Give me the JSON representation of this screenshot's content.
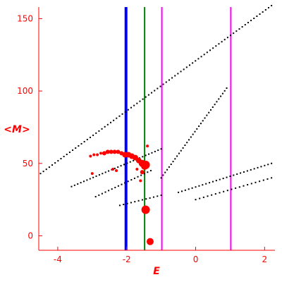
{
  "chart_data": {
    "type": "scatter",
    "title": "",
    "xlabel": "E",
    "ylabel": "<M>",
    "xlim": [
      -4.55,
      2.3
    ],
    "ylim": [
      -10,
      158
    ],
    "xticks": [
      -4,
      -2,
      0,
      2
    ],
    "yticks": [
      0,
      50,
      100,
      150
    ],
    "grid": false,
    "colors": {
      "axes": "#ff0000",
      "black_points": "#000000",
      "red_points": "#ff0000",
      "blue_line": "#0000ff",
      "green_line": "#008000",
      "magenta_lines": "#ff00ff"
    },
    "vertical_lines": [
      {
        "x": -2.02,
        "color": "#0000ff",
        "width": "thick"
      },
      {
        "x": -1.48,
        "color": "#008000",
        "width": "thin"
      },
      {
        "x": -0.98,
        "color": "#ff00ff",
        "width": "thin"
      },
      {
        "x": 1.02,
        "color": "#ff00ff",
        "width": "thin"
      }
    ],
    "black_series": [
      {
        "x_start": -4.5,
        "x_end": 2.2,
        "y_start": 43,
        "y_end": 159,
        "count": 80
      },
      {
        "x_start": -3.6,
        "x_end": -1.0,
        "y_start": 34,
        "y_end": 60,
        "count": 30
      },
      {
        "x_start": -2.9,
        "x_end": -1.3,
        "y_start": 27,
        "y_end": 45,
        "count": 18
      },
      {
        "x_start": -2.2,
        "x_end": -1.0,
        "y_start": 21,
        "y_end": 28,
        "count": 12
      },
      {
        "x_start": -1.0,
        "x_end": 0.9,
        "y_start": 40,
        "y_end": 102,
        "count": 34
      },
      {
        "x_start": -0.5,
        "x_end": 2.2,
        "y_start": 30,
        "y_end": 50,
        "count": 28
      },
      {
        "x_start": 0.0,
        "x_end": 2.2,
        "y_start": 25,
        "y_end": 40,
        "count": 20
      }
    ],
    "red_points": [
      {
        "x": -3.05,
        "y": 55,
        "size": 2
      },
      {
        "x": -2.95,
        "y": 56,
        "size": 2
      },
      {
        "x": -2.85,
        "y": 56,
        "size": 2
      },
      {
        "x": -2.75,
        "y": 57,
        "size": 2
      },
      {
        "x": -2.65,
        "y": 57,
        "size": 3
      },
      {
        "x": -2.55,
        "y": 58,
        "size": 3
      },
      {
        "x": -2.45,
        "y": 58,
        "size": 3
      },
      {
        "x": -2.35,
        "y": 58,
        "size": 3
      },
      {
        "x": -2.25,
        "y": 58,
        "size": 3
      },
      {
        "x": -2.15,
        "y": 57,
        "size": 3
      },
      {
        "x": -2.05,
        "y": 56,
        "size": 4
      },
      {
        "x": -1.95,
        "y": 56,
        "size": 4
      },
      {
        "x": -1.85,
        "y": 55,
        "size": 4
      },
      {
        "x": -1.75,
        "y": 54,
        "size": 4
      },
      {
        "x": -1.65,
        "y": 52,
        "size": 4
      },
      {
        "x": -1.55,
        "y": 50,
        "size": 5
      },
      {
        "x": -1.48,
        "y": 48,
        "size": 5
      },
      {
        "x": -1.45,
        "y": 49,
        "size": 6
      },
      {
        "x": -1.4,
        "y": 62,
        "size": 2
      },
      {
        "x": -1.55,
        "y": 44,
        "size": 3
      },
      {
        "x": -1.6,
        "y": 38,
        "size": 2
      },
      {
        "x": -1.7,
        "y": 46,
        "size": 2
      },
      {
        "x": -2.4,
        "y": 46,
        "size": 2
      },
      {
        "x": -2.3,
        "y": 45,
        "size": 2
      },
      {
        "x": -3.0,
        "y": 43,
        "size": 2
      },
      {
        "x": -1.45,
        "y": 18,
        "size": 6
      },
      {
        "x": -1.32,
        "y": -4,
        "size": 5
      }
    ]
  }
}
